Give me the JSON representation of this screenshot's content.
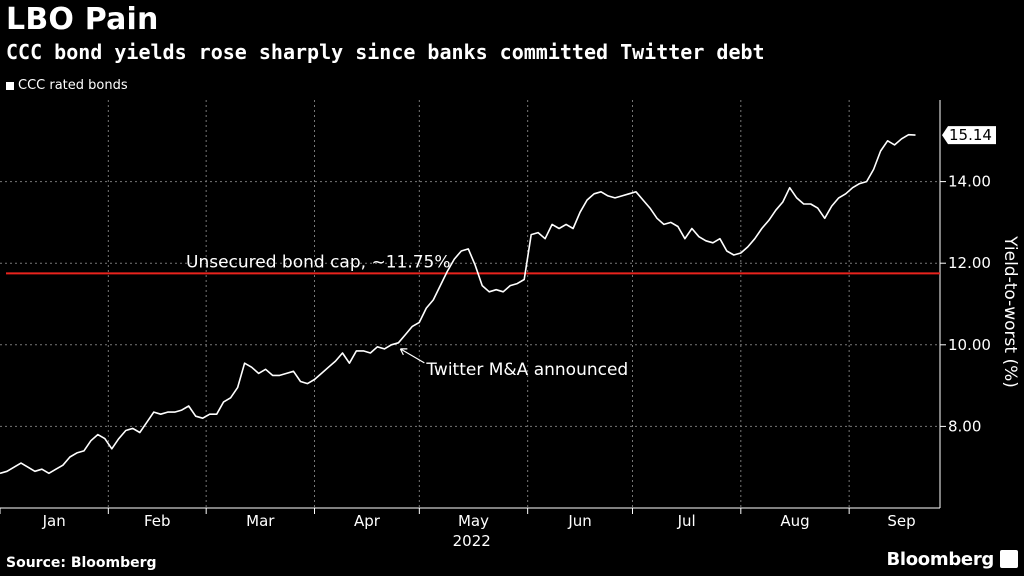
{
  "header": {
    "title": "LBO Pain",
    "subtitle": "CCC bond yields rose sharply since banks committed Twitter debt"
  },
  "footer": {
    "source": "Source: Bloomberg",
    "brand": "Bloomberg"
  },
  "colors": {
    "background": "#000000",
    "line": "#ffffff",
    "cap_line": "#e8231d",
    "grid": "#777777"
  },
  "chart_data": {
    "type": "line",
    "legend": [
      "CCC rated bonds"
    ],
    "ylabel": "Yield-to-worst (%)",
    "xlabel": "2022",
    "y_axis_position": "right",
    "ylim": [
      6.0,
      16.0
    ],
    "yticks": [
      8.0,
      10.0,
      12.0,
      14.0
    ],
    "ytick_labels": [
      "8.00",
      "10.00",
      "12.00",
      "14.00"
    ],
    "xticks": [
      "Jan",
      "Feb",
      "Mar",
      "Apr",
      "May",
      "Jun",
      "Jul",
      "Aug",
      "Sep"
    ],
    "last_value_label": "15.14",
    "grid": true,
    "series": [
      {
        "name": "CCC rated bonds",
        "points": [
          [
            "2022-01-01",
            6.85
          ],
          [
            "2022-01-03",
            6.9
          ],
          [
            "2022-01-05",
            7.0
          ],
          [
            "2022-01-07",
            7.1
          ],
          [
            "2022-01-09",
            7.0
          ],
          [
            "2022-01-11",
            6.9
          ],
          [
            "2022-01-13",
            6.95
          ],
          [
            "2022-01-15",
            6.85
          ],
          [
            "2022-01-17",
            6.95
          ],
          [
            "2022-01-19",
            7.05
          ],
          [
            "2022-01-21",
            7.25
          ],
          [
            "2022-01-23",
            7.35
          ],
          [
            "2022-01-25",
            7.4
          ],
          [
            "2022-01-27",
            7.65
          ],
          [
            "2022-01-29",
            7.8
          ],
          [
            "2022-01-31",
            7.7
          ],
          [
            "2022-02-02",
            7.45
          ],
          [
            "2022-02-04",
            7.7
          ],
          [
            "2022-02-06",
            7.9
          ],
          [
            "2022-02-08",
            7.95
          ],
          [
            "2022-02-10",
            7.85
          ],
          [
            "2022-02-12",
            8.1
          ],
          [
            "2022-02-14",
            8.35
          ],
          [
            "2022-02-16",
            8.3
          ],
          [
            "2022-02-18",
            8.35
          ],
          [
            "2022-02-20",
            8.35
          ],
          [
            "2022-02-22",
            8.4
          ],
          [
            "2022-02-24",
            8.5
          ],
          [
            "2022-02-26",
            8.25
          ],
          [
            "2022-02-28",
            8.2
          ],
          [
            "2022-03-02",
            8.3
          ],
          [
            "2022-03-04",
            8.3
          ],
          [
            "2022-03-06",
            8.6
          ],
          [
            "2022-03-08",
            8.7
          ],
          [
            "2022-03-10",
            8.95
          ],
          [
            "2022-03-12",
            9.55
          ],
          [
            "2022-03-14",
            9.45
          ],
          [
            "2022-03-16",
            9.3
          ],
          [
            "2022-03-18",
            9.4
          ],
          [
            "2022-03-20",
            9.25
          ],
          [
            "2022-03-22",
            9.25
          ],
          [
            "2022-03-24",
            9.3
          ],
          [
            "2022-03-26",
            9.35
          ],
          [
            "2022-03-28",
            9.1
          ],
          [
            "2022-03-30",
            9.05
          ],
          [
            "2022-04-01",
            9.15
          ],
          [
            "2022-04-03",
            9.3
          ],
          [
            "2022-04-05",
            9.45
          ],
          [
            "2022-04-07",
            9.6
          ],
          [
            "2022-04-09",
            9.8
          ],
          [
            "2022-04-11",
            9.55
          ],
          [
            "2022-04-13",
            9.85
          ],
          [
            "2022-04-15",
            9.85
          ],
          [
            "2022-04-17",
            9.8
          ],
          [
            "2022-04-19",
            9.95
          ],
          [
            "2022-04-21",
            9.9
          ],
          [
            "2022-04-23",
            10.0
          ],
          [
            "2022-04-25",
            10.05
          ],
          [
            "2022-04-27",
            10.25
          ],
          [
            "2022-04-29",
            10.45
          ],
          [
            "2022-05-01",
            10.55
          ],
          [
            "2022-05-03",
            10.9
          ],
          [
            "2022-05-05",
            11.1
          ],
          [
            "2022-05-07",
            11.45
          ],
          [
            "2022-05-09",
            11.8
          ],
          [
            "2022-05-11",
            12.1
          ],
          [
            "2022-05-13",
            12.3
          ],
          [
            "2022-05-15",
            12.35
          ],
          [
            "2022-05-17",
            11.95
          ],
          [
            "2022-05-19",
            11.45
          ],
          [
            "2022-05-21",
            11.3
          ],
          [
            "2022-05-23",
            11.35
          ],
          [
            "2022-05-25",
            11.3
          ],
          [
            "2022-05-27",
            11.45
          ],
          [
            "2022-05-29",
            11.5
          ],
          [
            "2022-05-31",
            11.6
          ],
          [
            "2022-06-02",
            12.7
          ],
          [
            "2022-06-04",
            12.75
          ],
          [
            "2022-06-06",
            12.6
          ],
          [
            "2022-06-08",
            12.95
          ],
          [
            "2022-06-10",
            12.85
          ],
          [
            "2022-06-12",
            12.95
          ],
          [
            "2022-06-14",
            12.85
          ],
          [
            "2022-06-16",
            13.25
          ],
          [
            "2022-06-18",
            13.55
          ],
          [
            "2022-06-20",
            13.7
          ],
          [
            "2022-06-22",
            13.75
          ],
          [
            "2022-06-24",
            13.65
          ],
          [
            "2022-06-26",
            13.6
          ],
          [
            "2022-06-28",
            13.65
          ],
          [
            "2022-06-30",
            13.7
          ],
          [
            "2022-07-02",
            13.75
          ],
          [
            "2022-07-04",
            13.55
          ],
          [
            "2022-07-06",
            13.35
          ],
          [
            "2022-07-08",
            13.1
          ],
          [
            "2022-07-10",
            12.95
          ],
          [
            "2022-07-12",
            13.0
          ],
          [
            "2022-07-14",
            12.9
          ],
          [
            "2022-07-16",
            12.6
          ],
          [
            "2022-07-18",
            12.85
          ],
          [
            "2022-07-20",
            12.65
          ],
          [
            "2022-07-22",
            12.55
          ],
          [
            "2022-07-24",
            12.5
          ],
          [
            "2022-07-26",
            12.6
          ],
          [
            "2022-07-28",
            12.3
          ],
          [
            "2022-07-30",
            12.2
          ],
          [
            "2022-08-01",
            12.25
          ],
          [
            "2022-08-03",
            12.4
          ],
          [
            "2022-08-05",
            12.6
          ],
          [
            "2022-08-07",
            12.85
          ],
          [
            "2022-08-09",
            13.05
          ],
          [
            "2022-08-11",
            13.3
          ],
          [
            "2022-08-13",
            13.5
          ],
          [
            "2022-08-15",
            13.85
          ],
          [
            "2022-08-17",
            13.6
          ],
          [
            "2022-08-19",
            13.45
          ],
          [
            "2022-08-21",
            13.45
          ],
          [
            "2022-08-23",
            13.35
          ],
          [
            "2022-08-25",
            13.1
          ],
          [
            "2022-08-27",
            13.4
          ],
          [
            "2022-08-29",
            13.6
          ],
          [
            "2022-08-31",
            13.7
          ],
          [
            "2022-09-02",
            13.85
          ],
          [
            "2022-09-04",
            13.95
          ],
          [
            "2022-09-06",
            14.0
          ],
          [
            "2022-09-08",
            14.3
          ],
          [
            "2022-09-10",
            14.75
          ],
          [
            "2022-09-12",
            15.0
          ],
          [
            "2022-09-14",
            14.9
          ],
          [
            "2022-09-16",
            15.05
          ],
          [
            "2022-09-18",
            15.15
          ],
          [
            "2022-09-20",
            15.14
          ]
        ]
      }
    ],
    "reference_line": {
      "value": 11.75,
      "label": "Unsecured bond cap, ~11.75%"
    },
    "annotations": [
      {
        "label": "Twitter M&A announced",
        "date": "2022-04-25",
        "value": 9.95
      }
    ]
  }
}
